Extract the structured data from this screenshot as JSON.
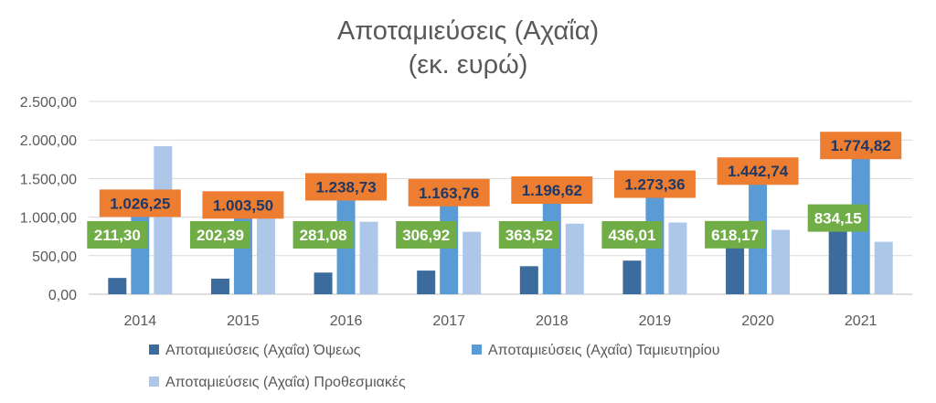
{
  "chart_data": {
    "type": "bar",
    "title": "Αποταμιεύσεις (Αχαΐα)",
    "subtitle": "(εκ. ευρώ)",
    "categories": [
      "2014",
      "2015",
      "2016",
      "2017",
      "2018",
      "2019",
      "2020",
      "2021"
    ],
    "series": [
      {
        "name": "Αποταμιεύσεις (Αχαΐα) Όψεως",
        "color": "#3c6b9d",
        "values": [
          211.3,
          202.39,
          281.08,
          306.92,
          363.52,
          436.01,
          618.17,
          834.15
        ],
        "data_labels": [
          "211,30",
          "202,39",
          "281,08",
          "306,92",
          "363,52",
          "436,01",
          "618,17",
          "834,15"
        ],
        "label_box_color": "#70ad47",
        "label_text_color": "#ffffff"
      },
      {
        "name": "Αποταμιεύσεις (Αχαΐα) Ταμιευτηρίου",
        "color": "#5b9bd5",
        "values": [
          1026.25,
          1003.5,
          1238.73,
          1163.76,
          1196.62,
          1273.36,
          1442.74,
          1774.82
        ],
        "data_labels": [
          "1.026,25",
          "1.003,50",
          "1.238,73",
          "1.163,76",
          "1.196,62",
          "1.273,36",
          "1.442,74",
          "1.774,82"
        ],
        "label_box_color": "#ed7d31",
        "label_text_color": "#1f3864"
      },
      {
        "name": "Αποταμιεύσεις (Αχαΐα) Προθεσμιακές",
        "color": "#adc7e8",
        "values": [
          1920,
          1100,
          940,
          810,
          915,
          930,
          835,
          680
        ]
      }
    ],
    "ylim": [
      0,
      2500
    ],
    "yticks": [
      0,
      500,
      1000,
      1500,
      2000,
      2500
    ],
    "ytick_labels": [
      "0,00",
      "500,00",
      "1.000,00",
      "1.500,00",
      "2.000,00",
      "2.500,00"
    ],
    "grid": true,
    "legend_position": "bottom"
  }
}
